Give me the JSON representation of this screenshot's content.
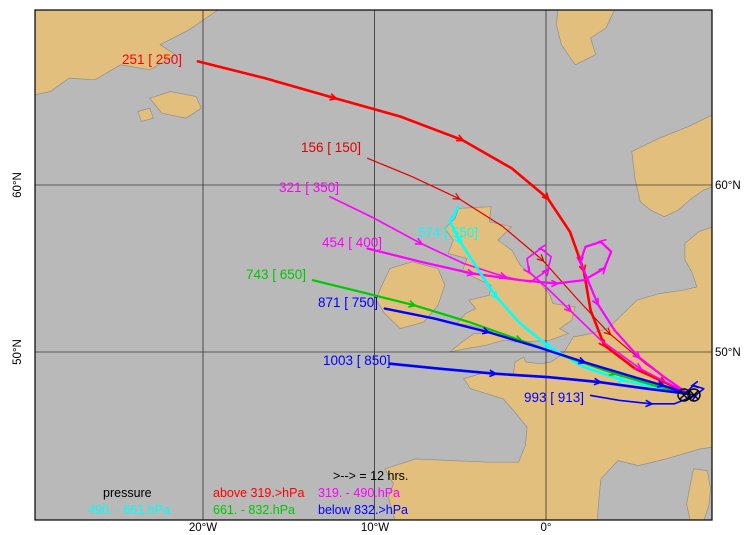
{
  "colors": {
    "sea": "#b9b9b9",
    "land": "#e2bf7d",
    "coast": "#8f8f8f",
    "frame": "#000000",
    "grid": "#000000",
    "red": "#ff0000",
    "dark_red": "#e00000",
    "magenta": "#ff00ff",
    "cyan": "#00ffff",
    "green": "#00c800",
    "blue": "#0000ff",
    "black": "#000000"
  },
  "axes": {
    "x_ticks": [
      {
        "label": "20°W",
        "lon": -20
      },
      {
        "label": "10°W",
        "lon": -10
      },
      {
        "label": "0°",
        "lon": 0
      }
    ],
    "y_ticks": [
      {
        "label": "60°N",
        "lat": 60
      },
      {
        "label": "50°N",
        "lat": 50
      }
    ]
  },
  "legend": {
    "arrow_note": ">--> = 12 hrs.",
    "title": "pressure",
    "entries": [
      {
        "label": "above 319.>hPa",
        "color": "#ff0000"
      },
      {
        "label": "319. - 490.hPa",
        "color": "#ff00ff"
      },
      {
        "label": "490. - 661.hPa",
        "color": "#00ffff"
      },
      {
        "label": "661. - 832.hPa",
        "color": "#00c800"
      },
      {
        "label": "below 832.>hPa",
        "color": "#0000ff"
      }
    ]
  },
  "arrival": {
    "symbol": "circled-x",
    "lon": 8.3,
    "lat": 47.5
  },
  "basemap": {
    "land": [
      {
        "name": "greenland",
        "points": [
          [
            -29.8,
            70.5
          ],
          [
            -19.1,
            70.5
          ],
          [
            -20.8,
            69.3
          ],
          [
            -22.5,
            68.4
          ],
          [
            -21.6,
            67.8
          ],
          [
            -23.1,
            66.9
          ],
          [
            -24.8,
            67.2
          ],
          [
            -26.3,
            66.3
          ],
          [
            -27.8,
            66.4
          ],
          [
            -28.9,
            65.6
          ],
          [
            -29.8,
            65.4
          ]
        ]
      },
      {
        "name": "iceland",
        "points": [
          [
            -23.1,
            65.2
          ],
          [
            -21.9,
            65.6
          ],
          [
            -20.4,
            65.3
          ],
          [
            -20.1,
            64.6
          ],
          [
            -21.0,
            64.0
          ],
          [
            -22.4,
            64.3
          ]
        ]
      },
      {
        "name": "iceland-west",
        "points": [
          [
            -23.8,
            64.4
          ],
          [
            -23.1,
            64.6
          ],
          [
            -22.9,
            64.0
          ],
          [
            -23.6,
            63.8
          ]
        ]
      },
      {
        "name": "norway-north",
        "points": [
          [
            0.7,
            70.5
          ],
          [
            4.0,
            70.5
          ],
          [
            3.5,
            69.4
          ],
          [
            2.6,
            68.8
          ],
          [
            2.9,
            67.8
          ],
          [
            1.7,
            67.2
          ],
          [
            0.9,
            68.4
          ],
          [
            0.6,
            69.6
          ]
        ]
      },
      {
        "name": "norway",
        "points": [
          [
            5.0,
            62.0
          ],
          [
            6.6,
            62.8
          ],
          [
            8.3,
            63.5
          ],
          [
            9.7,
            64.2
          ],
          [
            9.7,
            59.9
          ],
          [
            9.2,
            59.7
          ],
          [
            8.5,
            59.2
          ],
          [
            7.7,
            58.5
          ],
          [
            6.9,
            58.1
          ],
          [
            6.1,
            58.5
          ],
          [
            5.5,
            59.0
          ],
          [
            5.2,
            60.3
          ]
        ]
      },
      {
        "name": "ireland",
        "points": [
          [
            -9.7,
            53.7
          ],
          [
            -9.1,
            55.0
          ],
          [
            -7.8,
            55.4
          ],
          [
            -6.3,
            55.0
          ],
          [
            -5.9,
            54.0
          ],
          [
            -6.3,
            52.8
          ],
          [
            -7.1,
            51.8
          ],
          [
            -8.5,
            51.4
          ],
          [
            -9.4,
            52.3
          ],
          [
            -9.9,
            53.1
          ]
        ]
      },
      {
        "name": "great-britain",
        "points": [
          [
            -5.1,
            58.6
          ],
          [
            -3.2,
            58.7
          ],
          [
            -3.3,
            57.8
          ],
          [
            -2.0,
            57.5
          ],
          [
            -2.8,
            56.7
          ],
          [
            -2.0,
            56.1
          ],
          [
            -1.5,
            55.2
          ],
          [
            -0.5,
            54.3
          ],
          [
            0.2,
            53.5
          ],
          [
            0.4,
            52.9
          ],
          [
            1.7,
            52.7
          ],
          [
            1.5,
            51.9
          ],
          [
            0.8,
            51.4
          ],
          [
            1.3,
            51.1
          ],
          [
            0.2,
            50.7
          ],
          [
            -1.4,
            50.6
          ],
          [
            -2.5,
            50.7
          ],
          [
            -3.5,
            50.4
          ],
          [
            -4.7,
            50.2
          ],
          [
            -5.6,
            50.0
          ],
          [
            -4.9,
            50.6
          ],
          [
            -4.2,
            51.1
          ],
          [
            -3.1,
            51.2
          ],
          [
            -4.4,
            51.6
          ],
          [
            -5.2,
            51.7
          ],
          [
            -4.7,
            52.3
          ],
          [
            -4.1,
            52.6
          ],
          [
            -4.5,
            53.1
          ],
          [
            -3.3,
            53.4
          ],
          [
            -3.2,
            54.0
          ],
          [
            -4.9,
            54.8
          ],
          [
            -4.6,
            55.6
          ],
          [
            -5.7,
            55.9
          ],
          [
            -5.4,
            56.7
          ],
          [
            -5.9,
            57.4
          ],
          [
            -5.3,
            58.0
          ]
        ]
      },
      {
        "name": "continental-europe",
        "points": [
          [
            -4.8,
            48.4
          ],
          [
            -3.5,
            48.8
          ],
          [
            -2.4,
            48.6
          ],
          [
            -1.9,
            48.7
          ],
          [
            -1.8,
            49.4
          ],
          [
            -1.3,
            49.7
          ],
          [
            -1.2,
            49.4
          ],
          [
            -0.3,
            49.3
          ],
          [
            0.3,
            49.4
          ],
          [
            1.0,
            49.9
          ],
          [
            1.6,
            50.9
          ],
          [
            2.6,
            51.1
          ],
          [
            3.6,
            51.4
          ],
          [
            4.6,
            52.4
          ],
          [
            5.3,
            53.1
          ],
          [
            6.6,
            53.5
          ],
          [
            8.0,
            53.7
          ],
          [
            8.8,
            53.9
          ],
          [
            8.5,
            54.8
          ],
          [
            8.1,
            55.5
          ],
          [
            8.1,
            56.5
          ],
          [
            8.9,
            57.2
          ],
          [
            9.7,
            57.5
          ],
          [
            9.7,
            44.3
          ],
          [
            9.0,
            44.2
          ],
          [
            7.0,
            43.6
          ],
          [
            5.4,
            43.2
          ],
          [
            4.2,
            43.5
          ],
          [
            3.2,
            42.4
          ],
          [
            3.05,
            40.8
          ],
          [
            3.0,
            39.9
          ],
          [
            -8.8,
            39.9
          ],
          [
            -9.2,
            41.3
          ],
          [
            -8.9,
            42.1
          ],
          [
            -9.4,
            43.0
          ],
          [
            -7.6,
            43.6
          ],
          [
            -5.5,
            43.5
          ],
          [
            -3.3,
            43.4
          ],
          [
            -1.6,
            43.4
          ],
          [
            -1.2,
            44.4
          ],
          [
            -1.1,
            45.5
          ],
          [
            -1.9,
            46.5
          ],
          [
            -2.5,
            47.2
          ],
          [
            -4.4,
            47.8
          ]
        ]
      },
      {
        "name": "corsica-sardinia",
        "points": [
          [
            8.6,
            43.0
          ],
          [
            9.4,
            42.9
          ],
          [
            9.6,
            41.8
          ],
          [
            9.5,
            40.8
          ],
          [
            9.2,
            39.9
          ],
          [
            8.4,
            39.9
          ],
          [
            8.2,
            40.9
          ],
          [
            8.4,
            42.0
          ]
        ]
      }
    ]
  },
  "chart_data": {
    "type": "line",
    "subtype": "back-trajectory-map",
    "title": "",
    "lon_range": [
      -29.8,
      9.7
    ],
    "lat_range": [
      39.9,
      70.5
    ],
    "grid": true,
    "arrow_interval_label": ">--> = 12 hrs.",
    "trajectories": [
      {
        "label": "251 [ 250]",
        "start_pressure_hPa": 251,
        "level_hPa": 250,
        "color": "#ff0000",
        "width": 2.6,
        "points": [
          [
            -20.3,
            67.4
          ],
          [
            -16.4,
            66.4
          ],
          [
            -12.3,
            65.2
          ],
          [
            -8.5,
            64.1
          ],
          [
            -4.9,
            62.7
          ],
          [
            -2.0,
            61.0
          ],
          [
            0.1,
            59.2
          ],
          [
            1.4,
            57.2
          ],
          [
            2.2,
            54.9
          ],
          [
            2.6,
            52.5
          ],
          [
            3.4,
            50.4
          ],
          [
            5.2,
            49.0
          ],
          [
            6.9,
            48.2
          ],
          [
            8.3,
            47.5
          ]
        ]
      },
      {
        "label": "156 [ 150]",
        "start_pressure_hPa": 156,
        "level_hPa": 150,
        "color": "#e00000",
        "width": 1.2,
        "points": [
          [
            -10.4,
            61.6
          ],
          [
            -7.8,
            60.5
          ],
          [
            -5.1,
            59.2
          ],
          [
            -2.5,
            57.5
          ],
          [
            -0.2,
            55.5
          ],
          [
            1.8,
            53.2
          ],
          [
            3.7,
            51.1
          ],
          [
            5.8,
            49.3
          ],
          [
            8.3,
            47.5
          ]
        ]
      },
      {
        "label": "321 [ 350]",
        "start_pressure_hPa": 321,
        "level_hPa": 350,
        "color": "#ff00ff",
        "width": 1.6,
        "points": [
          [
            -12.6,
            59.3
          ],
          [
            -10.0,
            58.0
          ],
          [
            -7.3,
            56.5
          ],
          [
            -4.8,
            55.3
          ],
          [
            -2.4,
            54.5
          ],
          [
            -0.9,
            54.2
          ],
          [
            0.1,
            54.9
          ],
          [
            0.3,
            55.7
          ],
          [
            -0.3,
            56.2
          ],
          [
            -1.1,
            55.6
          ],
          [
            -1.0,
            54.8
          ],
          [
            0.0,
            53.9
          ],
          [
            1.4,
            52.5
          ],
          [
            3.2,
            50.7
          ],
          [
            5.5,
            49.0
          ],
          [
            8.3,
            47.5
          ]
        ]
      },
      {
        "label": "454 [ 400]",
        "start_pressure_hPa": 454,
        "level_hPa": 400,
        "color": "#ff00ff",
        "width": 2.2,
        "points": [
          [
            -10.4,
            56.2
          ],
          [
            -7.3,
            55.4
          ],
          [
            -4.3,
            54.7
          ],
          [
            -1.5,
            54.3
          ],
          [
            0.6,
            54.1
          ],
          [
            2.2,
            54.3
          ],
          [
            3.4,
            55.0
          ],
          [
            3.8,
            56.0
          ],
          [
            3.2,
            56.6
          ],
          [
            2.3,
            56.3
          ],
          [
            2.0,
            55.4
          ],
          [
            2.4,
            54.4
          ],
          [
            3.0,
            52.9
          ],
          [
            4.0,
            51.3
          ],
          [
            5.4,
            49.7
          ],
          [
            6.9,
            48.5
          ],
          [
            8.3,
            47.5
          ]
        ]
      },
      {
        "label": "574 [ 550]",
        "start_pressure_hPa": 574,
        "level_hPa": 550,
        "color": "#00ffff",
        "width": 2.6,
        "points": [
          [
            -5.1,
            58.7
          ],
          [
            -5.6,
            57.8
          ],
          [
            -5.0,
            56.6
          ],
          [
            -4.0,
            55.0
          ],
          [
            -2.9,
            53.3
          ],
          [
            -1.5,
            51.7
          ],
          [
            0.2,
            50.3
          ],
          [
            2.2,
            49.1
          ],
          [
            4.5,
            48.3
          ],
          [
            8.3,
            47.5
          ]
        ]
      },
      {
        "label": "743 [ 650]",
        "start_pressure_hPa": 743,
        "level_hPa": 650,
        "color": "#00c800",
        "width": 2.2,
        "points": [
          [
            -13.6,
            54.3
          ],
          [
            -10.8,
            53.6
          ],
          [
            -7.7,
            52.8
          ],
          [
            -4.5,
            51.8
          ],
          [
            -1.5,
            50.7
          ],
          [
            1.2,
            49.7
          ],
          [
            4.0,
            48.7
          ],
          [
            6.3,
            48.0
          ],
          [
            8.3,
            47.5
          ]
        ]
      },
      {
        "label": "871 [ 750]",
        "start_pressure_hPa": 871,
        "level_hPa": 750,
        "color": "#0000ff",
        "width": 2.4,
        "points": [
          [
            -9.4,
            52.6
          ],
          [
            -6.5,
            52.0
          ],
          [
            -3.4,
            51.2
          ],
          [
            -0.5,
            50.3
          ],
          [
            2.2,
            49.4
          ],
          [
            4.8,
            48.6
          ],
          [
            6.8,
            48.0
          ],
          [
            8.3,
            47.5
          ]
        ]
      },
      {
        "label": "1003 [ 850]",
        "start_pressure_hPa": 1003,
        "level_hPa": 850,
        "color": "#0000ff",
        "width": 2.6,
        "points": [
          [
            -9.1,
            49.3
          ],
          [
            -6.2,
            49.0
          ],
          [
            -3.0,
            48.7
          ],
          [
            0.1,
            48.5
          ],
          [
            3.1,
            48.2
          ],
          [
            5.9,
            47.8
          ],
          [
            8.3,
            47.5
          ]
        ]
      },
      {
        "label": "993 [ 913]",
        "start_pressure_hPa": 993,
        "level_hPa": 913,
        "color": "#0000ff",
        "width": 1.6,
        "points": [
          [
            2.6,
            47.4
          ],
          [
            4.3,
            47.1
          ],
          [
            6.1,
            46.9
          ],
          [
            7.5,
            46.9
          ],
          [
            8.7,
            47.4
          ],
          [
            9.2,
            47.8
          ],
          [
            8.6,
            48.0
          ],
          [
            8.2,
            47.6
          ]
        ]
      }
    ]
  }
}
